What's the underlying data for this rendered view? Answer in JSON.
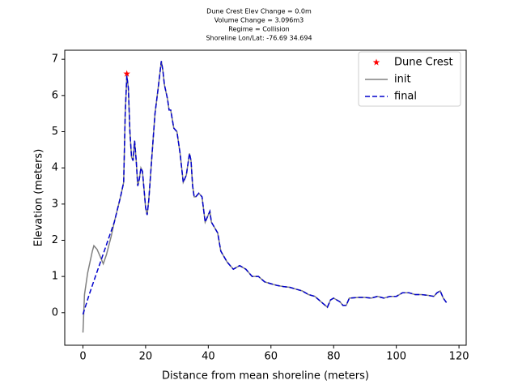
{
  "chart_data": {
    "type": "line",
    "title": [
      "Dune Crest Elev Change = 0.0m",
      "Volume Change = 3.096m3",
      "Regime = Collision",
      "Shoreline Lon/Lat: -76.69 34.694"
    ],
    "x_label": "Distance from mean shoreline (meters)",
    "y_label": "Elevation (meters)",
    "xlim": [
      -5.8,
      122.3
    ],
    "ylim": [
      -0.9,
      7.25
    ],
    "xticks": [
      0,
      20,
      40,
      60,
      80,
      100,
      120
    ],
    "yticks": [
      0,
      1,
      2,
      3,
      4,
      5,
      6,
      7
    ],
    "legend": "upper right",
    "series": [
      {
        "name": "Dune Crest",
        "color": "#ff0000",
        "marker": "star",
        "linestyle": "none",
        "x": [
          14
        ],
        "values": [
          6.6
        ]
      },
      {
        "name": "init",
        "color": "#808080",
        "marker": "none",
        "linestyle": "solid",
        "x": [
          0,
          0.5,
          1.5,
          3,
          3.5,
          4.5,
          5.5,
          6.5,
          7.5,
          9,
          10,
          12,
          13,
          13.5,
          14,
          14.5,
          15,
          15.5,
          16,
          16.5,
          17,
          17.5,
          18,
          18.5,
          19,
          19.5,
          20,
          20.5,
          21,
          22,
          23,
          24,
          25,
          25.5,
          26,
          27,
          27.5,
          28,
          29,
          30,
          31,
          32,
          33,
          34,
          34.5,
          35,
          35.5,
          36,
          37,
          38,
          39,
          40,
          40.5,
          41,
          43,
          44,
          46,
          48,
          50,
          52,
          54,
          56,
          58,
          60,
          62,
          64,
          66,
          68,
          70,
          72,
          74,
          76,
          78,
          79,
          80,
          82,
          83,
          84,
          85,
          88,
          90,
          92,
          94,
          96,
          98,
          100,
          102,
          104,
          106,
          108,
          110,
          112,
          113,
          114,
          115,
          116
        ],
        "values": [
          -0.55,
          0.5,
          1.1,
          1.7,
          1.85,
          1.75,
          1.55,
          1.35,
          1.6,
          2.1,
          2.5,
          3.2,
          3.6,
          5.5,
          6.55,
          6.2,
          5.0,
          4.3,
          4.2,
          4.75,
          4.2,
          3.5,
          3.7,
          4.0,
          3.9,
          3.4,
          2.9,
          2.7,
          3.1,
          4.3,
          5.5,
          6.2,
          6.95,
          6.7,
          6.3,
          5.9,
          5.6,
          5.6,
          5.1,
          5.0,
          4.4,
          3.6,
          3.8,
          4.4,
          4.2,
          3.5,
          3.2,
          3.2,
          3.3,
          3.2,
          2.5,
          2.7,
          2.8,
          2.5,
          2.2,
          1.7,
          1.4,
          1.2,
          1.3,
          1.2,
          1.0,
          1.0,
          0.85,
          0.8,
          0.75,
          0.72,
          0.7,
          0.65,
          0.6,
          0.5,
          0.45,
          0.3,
          0.15,
          0.35,
          0.4,
          0.3,
          0.2,
          0.2,
          0.4,
          0.42,
          0.42,
          0.4,
          0.45,
          0.4,
          0.45,
          0.45,
          0.55,
          0.55,
          0.5,
          0.5,
          0.48,
          0.45,
          0.55,
          0.6,
          0.4,
          0.28
        ]
      },
      {
        "name": "final",
        "color": "#0000cc",
        "marker": "none",
        "linestyle": "dashed",
        "x": [
          0,
          2,
          4,
          6,
          8,
          10,
          12,
          13,
          13.5,
          14,
          14.5,
          15,
          15.5,
          16,
          16.5,
          17,
          17.5,
          18,
          18.5,
          19,
          19.5,
          20,
          20.5,
          21,
          22,
          23,
          24,
          25,
          25.5,
          26,
          27,
          27.5,
          28,
          29,
          30,
          31,
          32,
          33,
          34,
          34.5,
          35,
          35.5,
          36,
          37,
          38,
          39,
          40,
          40.5,
          41,
          43,
          44,
          46,
          48,
          50,
          52,
          54,
          56,
          58,
          60,
          62,
          64,
          66,
          68,
          70,
          72,
          74,
          76,
          78,
          79,
          80,
          82,
          83,
          84,
          85,
          88,
          90,
          92,
          94,
          96,
          98,
          100,
          102,
          104,
          106,
          108,
          110,
          112,
          113,
          114,
          115,
          116
        ],
        "values": [
          -0.05,
          0.5,
          1.0,
          1.5,
          2.0,
          2.5,
          3.2,
          3.6,
          5.5,
          6.55,
          6.2,
          5.0,
          4.3,
          4.2,
          4.75,
          4.2,
          3.5,
          3.7,
          4.0,
          3.9,
          3.4,
          2.9,
          2.7,
          3.1,
          4.3,
          5.5,
          6.2,
          6.95,
          6.7,
          6.3,
          5.9,
          5.6,
          5.6,
          5.1,
          5.0,
          4.4,
          3.6,
          3.8,
          4.4,
          4.2,
          3.5,
          3.2,
          3.2,
          3.3,
          3.2,
          2.5,
          2.7,
          2.8,
          2.5,
          2.2,
          1.7,
          1.4,
          1.2,
          1.3,
          1.2,
          1.0,
          1.0,
          0.85,
          0.8,
          0.75,
          0.72,
          0.7,
          0.65,
          0.6,
          0.5,
          0.45,
          0.3,
          0.15,
          0.35,
          0.4,
          0.3,
          0.2,
          0.2,
          0.4,
          0.42,
          0.42,
          0.4,
          0.45,
          0.4,
          0.45,
          0.45,
          0.55,
          0.55,
          0.5,
          0.5,
          0.48,
          0.45,
          0.55,
          0.6,
          0.4,
          0.28
        ]
      }
    ]
  }
}
